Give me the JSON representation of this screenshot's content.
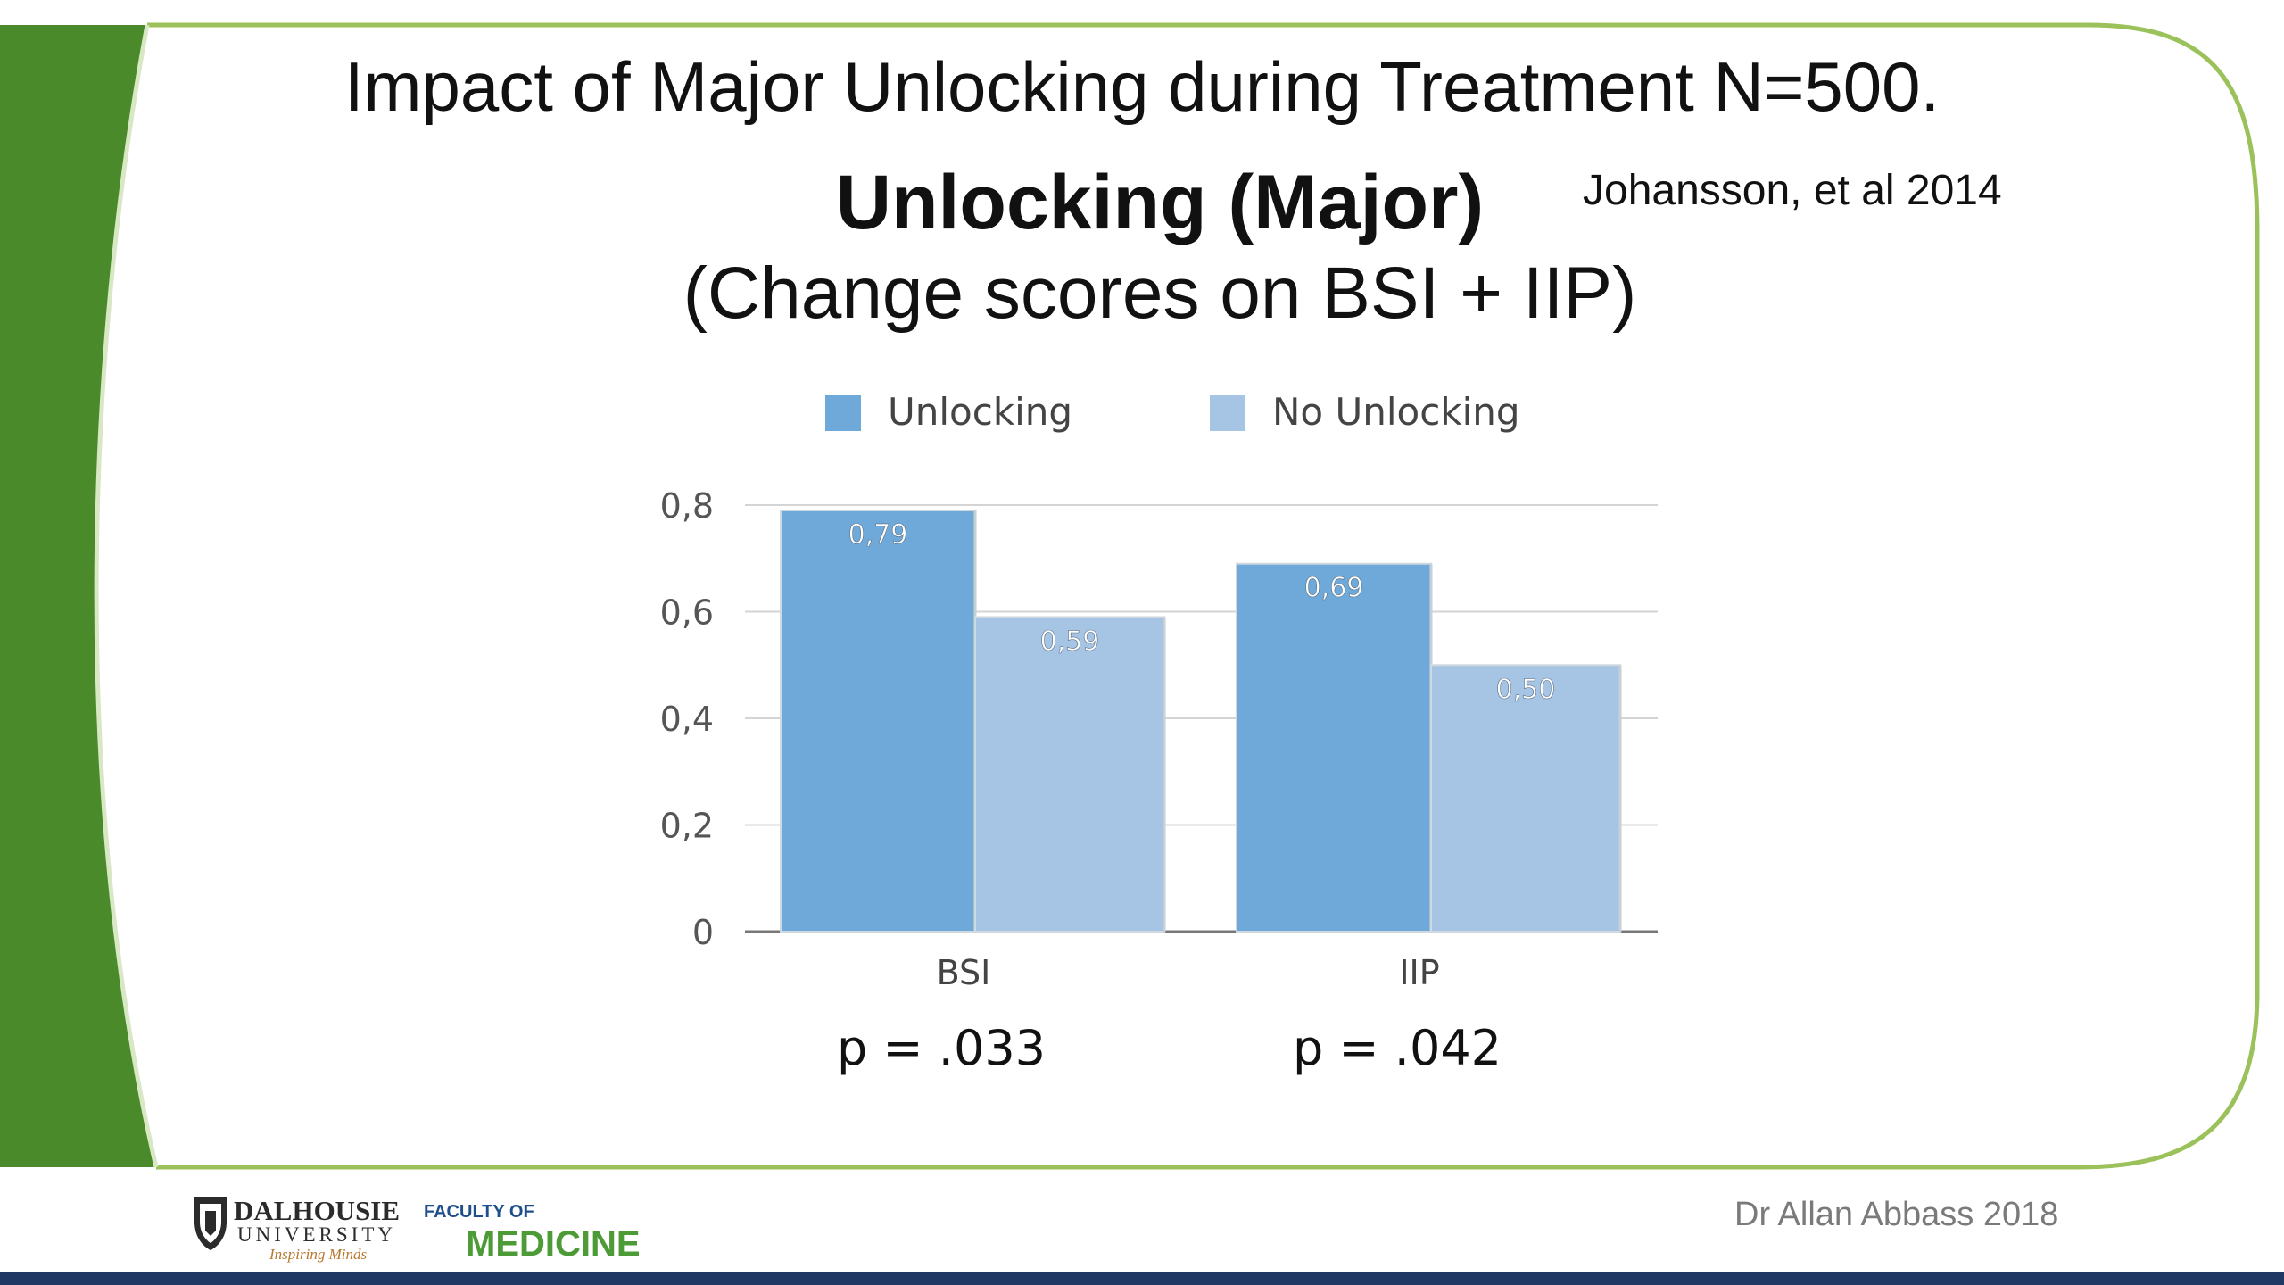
{
  "slide": {
    "title": "Impact of Major Unlocking during Treatment N=500.",
    "citation": "Johansson, et al 2014",
    "footer": "Dr Allan Abbass 2018",
    "colors": {
      "green": "#4a8a2a",
      "light_green_border": "#9bc15a",
      "bar_unlocking": "#6fa9d9",
      "bar_no_unlocking": "#a6c5e5",
      "footer_bar": "#1f3864"
    }
  },
  "logos": {
    "university_line1": "DALHOUSIE",
    "university_line2": "UNIVERSITY",
    "university_tagline": "Inspiring Minds",
    "faculty_line1": "FACULTY OF",
    "faculty_line2": "MEDICINE",
    "crest_icon": "crest-icon"
  },
  "chart_data": {
    "type": "bar",
    "title": "Unlocking (Major)",
    "subtitle": "(Change scores on BSI + IIP)",
    "categories": [
      "BSI",
      "IIP"
    ],
    "series": [
      {
        "name": "Unlocking",
        "values": [
          0.79,
          0.69
        ],
        "labels": [
          "0,79",
          "0,69"
        ],
        "color": "#6fa9d9"
      },
      {
        "name": "No Unlocking",
        "values": [
          0.59,
          0.5
        ],
        "labels": [
          "0,59",
          "0,50"
        ],
        "color": "#a6c5e5"
      }
    ],
    "ylim": [
      0,
      0.8
    ],
    "yticks": [
      0,
      0.2,
      0.4,
      0.6,
      0.8
    ],
    "ytick_labels": [
      "0",
      "0,2",
      "0,4",
      "0,6",
      "0,8"
    ],
    "p_values": [
      "p = .033",
      "p = .042"
    ],
    "grid": true,
    "legend": "top"
  }
}
